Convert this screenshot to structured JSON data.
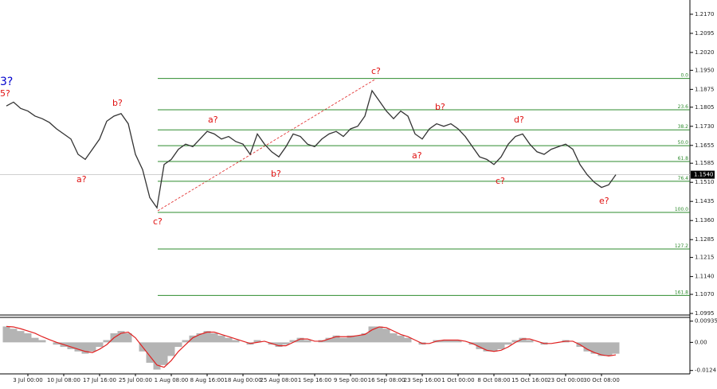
{
  "chart_data": [
    {
      "type": "line",
      "color": "#333333",
      "categories": [
        null,
        null,
        null,
        "3 Jul 00:00",
        null,
        null,
        null,
        null,
        "10 Jul 08:00",
        null,
        null,
        null,
        null,
        "17 Jul 16:00",
        null,
        null,
        null,
        null,
        "25 Jul 00:00",
        null,
        null,
        null,
        null,
        "1 Aug 08:00",
        null,
        null,
        null,
        null,
        "8 Aug 16:00",
        null,
        null,
        null,
        null,
        "18 Aug 00:00",
        null,
        null,
        null,
        null,
        "25 Aug 08:00",
        null,
        null,
        null,
        null,
        "1 Sep 16:00",
        null,
        null,
        null,
        null,
        "9 Sep 00:00",
        null,
        null,
        null,
        null,
        "16 Sep 08:00",
        null,
        null,
        null,
        null,
        "23 Sep 16:00",
        null,
        null,
        null,
        null,
        "1 Oct 00:00",
        null,
        null,
        null,
        null,
        "8 Oct 08:00",
        null,
        null,
        null,
        null,
        "15 Oct 16:00",
        null,
        null,
        null,
        null,
        "23 Oct 00:00",
        null,
        null,
        null,
        null,
        "30 Oct 08:00",
        null,
        null
      ],
      "values": [
        1.181,
        1.1825,
        1.18,
        1.179,
        1.177,
        1.176,
        1.1745,
        1.172,
        1.17,
        1.168,
        1.162,
        1.16,
        1.164,
        1.168,
        1.175,
        1.177,
        1.178,
        1.174,
        1.162,
        1.156,
        1.145,
        1.141,
        1.158,
        1.16,
        1.164,
        1.166,
        1.165,
        1.168,
        1.171,
        1.17,
        1.168,
        1.169,
        1.167,
        1.166,
        1.162,
        1.17,
        1.166,
        1.163,
        1.161,
        1.165,
        1.17,
        1.169,
        1.166,
        1.165,
        1.168,
        1.17,
        1.171,
        1.169,
        1.172,
        1.173,
        1.177,
        1.187,
        1.183,
        1.179,
        1.176,
        1.179,
        1.177,
        1.17,
        1.168,
        1.172,
        1.174,
        1.173,
        1.174,
        1.172,
        1.169,
        1.165,
        1.161,
        1.16,
        1.158,
        1.161,
        1.166,
        1.169,
        1.17,
        1.166,
        1.163,
        1.162,
        1.164,
        1.165,
        1.166,
        1.164,
        1.158,
        1.154,
        1.151,
        1.149,
        1.15,
        1.154
      ],
      "ylim": [
        1.0992,
        1.2226
      ],
      "yticks": [
        {
          "value": 1.217,
          "label": "1.2170"
        },
        {
          "value": 1.2095,
          "label": "1.2095"
        },
        {
          "value": 1.202,
          "label": "1.2020"
        },
        {
          "value": 1.195,
          "label": "1.1950"
        },
        {
          "value": 1.1875,
          "label": "1.1875"
        },
        {
          "value": 1.1805,
          "label": "1.1805"
        },
        {
          "value": 1.173,
          "label": "1.1730"
        },
        {
          "value": 1.1655,
          "label": "1.1655"
        },
        {
          "value": 1.1585,
          "label": "1.1585"
        },
        {
          "value": 1.151,
          "label": "1.1510"
        },
        {
          "value": 1.1435,
          "label": "1.1435"
        },
        {
          "value": 1.136,
          "label": "1.1360"
        },
        {
          "value": 1.1285,
          "label": "1.1285"
        },
        {
          "value": 1.1215,
          "label": "1.1215"
        },
        {
          "value": 1.114,
          "label": "1.1140"
        },
        {
          "value": 1.107,
          "label": "1.1070"
        },
        {
          "value": 1.0995,
          "label": "1.0995"
        }
      ],
      "last_price": {
        "value": 1.154,
        "label": "1.1540"
      },
      "fib_color": "#2e8b2e",
      "fib_levels": [
        {
          "value": 1.1918,
          "label": "0.0"
        },
        {
          "value": 1.1795,
          "label": "23.6"
        },
        {
          "value": 1.1716,
          "label": "38.2"
        },
        {
          "value": 1.1654,
          "label": "50.0"
        },
        {
          "value": 1.1592,
          "label": "61.8"
        },
        {
          "value": 1.1514,
          "label": "76.4"
        },
        {
          "value": 1.1392,
          "label": "100.0"
        },
        {
          "value": 1.1248,
          "label": "127.2"
        },
        {
          "value": 1.1066,
          "label": "161.8"
        }
      ],
      "annotations": [
        "3?",
        "5?",
        "b?",
        "a?",
        "c?",
        "a?",
        "b?",
        "c?",
        "b?",
        "a?",
        "c?",
        "d?",
        "e?"
      ]
    },
    {
      "type": "macd",
      "color": "#b4b4b4",
      "signal_color": "#e02020",
      "values": [
        0.007,
        0.006,
        0.005,
        0.004,
        0.002,
        0.001,
        0,
        -0.001,
        -0.002,
        -0.003,
        -0.004,
        -0.005,
        -0.004,
        -0.002,
        0.001,
        0.004,
        0.005,
        0.004,
        0,
        -0.004,
        -0.009,
        -0.012,
        -0.01,
        -0.006,
        -0.002,
        0.001,
        0.003,
        0.004,
        0.005,
        0.004,
        0.003,
        0.002,
        0.001,
        0,
        -0.001,
        0.001,
        0,
        -0.001,
        -0.002,
        -0.001,
        0.001,
        0.002,
        0.001,
        0,
        0.001,
        0.002,
        0.003,
        0.002,
        0.003,
        0.003,
        0.004,
        0.007,
        0.007,
        0.006,
        0.004,
        0.003,
        0.002,
        0,
        -0.001,
        0,
        0.001,
        0.001,
        0.001,
        0.001,
        0,
        -0.001,
        -0.003,
        -0.004,
        -0.004,
        -0.003,
        -0.001,
        0.001,
        0.002,
        0.001,
        0,
        -0.001,
        0,
        0,
        0.001,
        0,
        -0.002,
        -0.004,
        -0.005,
        -0.006,
        -0.006,
        -0.005
      ],
      "signal": [
        0.007,
        0.0068,
        0.006,
        0.005,
        0.004,
        0.0025,
        0.0012,
        0,
        -0.001,
        -0.002,
        -0.003,
        -0.004,
        -0.0045,
        -0.003,
        -0.001,
        0.002,
        0.004,
        0.0045,
        0.002,
        -0.002,
        -0.006,
        -0.01,
        -0.011,
        -0.008,
        -0.004,
        -0.001,
        0.002,
        0.0035,
        0.0045,
        0.0045,
        0.0035,
        0.0025,
        0.0015,
        0.0005,
        -0.0005,
        0,
        0.0005,
        -0.0005,
        -0.0015,
        -0.0015,
        0,
        0.0015,
        0.0015,
        0.0005,
        0.0005,
        0.0015,
        0.0025,
        0.0025,
        0.0025,
        0.003,
        0.0035,
        0.0055,
        0.0068,
        0.0065,
        0.005,
        0.0035,
        0.0025,
        0.001,
        -0.0005,
        -0.0005,
        0.0005,
        0.001,
        0.001,
        0.001,
        0.0005,
        -0.0005,
        -0.002,
        -0.0035,
        -0.004,
        -0.0035,
        -0.002,
        0,
        0.0015,
        0.0015,
        0.0005,
        -0.0005,
        -0.0005,
        0,
        0.0005,
        0.0005,
        -0.001,
        -0.003,
        -0.0045,
        -0.0055,
        -0.006,
        -0.0055
      ],
      "ylim": [
        -0.0139,
        0.011
      ],
      "yticks": [
        0.00935,
        {
          "value": 0,
          "label": "0.00"
        },
        -0.0124
      ]
    }
  ]
}
